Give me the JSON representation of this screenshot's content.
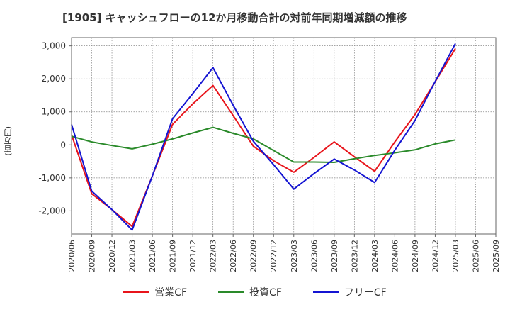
{
  "chart_data": {
    "type": "line",
    "title": "[1905]  キャッシュフローの12か月移動合計の対前年同期増減額の推移",
    "ylabel": "(百万円)",
    "xlabel": "",
    "x": [
      "2020/06",
      "2020/09",
      "2020/12",
      "2021/03",
      "2021/06",
      "2021/09",
      "2021/12",
      "2022/03",
      "2022/06",
      "2022/09",
      "2022/12",
      "2023/03",
      "2023/06",
      "2023/09",
      "2023/12",
      "2024/03",
      "2024/06",
      "2024/09",
      "2024/12",
      "2025/03",
      "2025/06",
      "2025/09"
    ],
    "ylim": [
      -2700,
      3250
    ],
    "yticks": [
      3000,
      2000,
      1000,
      0,
      -1000,
      -2000
    ],
    "ytick_labels": [
      "3,000",
      "2,000",
      "1,000",
      "0",
      "-1,000",
      "-2,000"
    ],
    "grid": true,
    "legend_position": "bottom",
    "series": [
      {
        "name": "営業CF",
        "color": "#e8141b",
        "values": [
          310,
          -1480,
          -1960,
          -2470,
          -940,
          620,
          1240,
          1800,
          890,
          -40,
          -480,
          -830,
          -380,
          90,
          -360,
          -800,
          90,
          920,
          1910,
          2920,
          null,
          null
        ]
      },
      {
        "name": "投資CF",
        "color": "#2a8a2a",
        "values": [
          260,
          90,
          -20,
          -120,
          20,
          180,
          360,
          530,
          350,
          180,
          -170,
          -520,
          -520,
          -530,
          -420,
          -320,
          -240,
          -150,
          30,
          150,
          null,
          null
        ]
      },
      {
        "name": "フリーCF",
        "color": "#1414d2",
        "values": [
          620,
          -1400,
          -1960,
          -2580,
          -940,
          790,
          1550,
          2340,
          1200,
          110,
          -600,
          -1340,
          -870,
          -430,
          -760,
          -1140,
          -160,
          740,
          1920,
          3070,
          null,
          null
        ]
      }
    ]
  }
}
